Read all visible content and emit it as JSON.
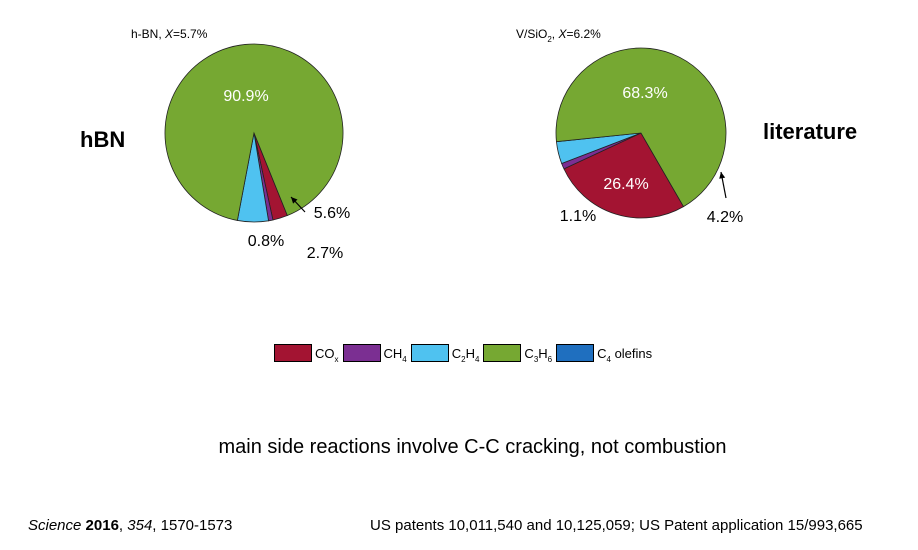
{
  "charts_header": {
    "left_label": "hBN",
    "right_label": "literature",
    "left_subtitle_prefix": "h-BN, ",
    "left_subtitle_x": "X",
    "left_subtitle_value": "=5.7%",
    "right_subtitle_prefix": "V/SiO",
    "right_subtitle_sub": "2",
    "right_subtitle_sep": ", ",
    "right_subtitle_x": "X",
    "right_subtitle_value": "=6.2%"
  },
  "colors": {
    "COx": "#a31432",
    "CH4": "#7b2f92",
    "C2H4": "#4fc2f0",
    "C3H6": "#76a832",
    "C4": "#1f6fbf"
  },
  "legend": {
    "items": [
      {
        "key": "COx",
        "base": "CO",
        "sub": "x",
        "tail": ""
      },
      {
        "key": "CH4",
        "base": "CH",
        "sub": "4",
        "tail": ""
      },
      {
        "key": "C2H4",
        "base": "C",
        "sub": "2",
        "tail": "H",
        "sub2": "4"
      },
      {
        "key": "C3H6",
        "base": "C",
        "sub": "3",
        "tail": "H",
        "sub2": "6"
      },
      {
        "key": "C4",
        "base": "C",
        "sub": "4",
        "tail": " olefins"
      }
    ]
  },
  "chart_data": [
    {
      "type": "pie",
      "title": "h-BN, X=5.7%",
      "categories": [
        "COx",
        "CH4",
        "C2H4",
        "C3H6",
        "C4 olefins"
      ],
      "values": [
        2.7,
        0.8,
        5.6,
        90.9,
        0.0
      ],
      "labels": [
        "2.7%",
        "0.8%",
        "5.6%",
        "90.9%",
        ""
      ]
    },
    {
      "type": "pie",
      "title": "V/SiO2, X=6.2%",
      "categories": [
        "COx",
        "CH4",
        "C2H4",
        "C3H6",
        "C4 olefins"
      ],
      "values": [
        26.4,
        1.1,
        4.2,
        68.3,
        0.0
      ],
      "labels": [
        "26.4%",
        "1.1%",
        "4.2%",
        "68.3%",
        ""
      ]
    }
  ],
  "caption": "main side reactions involve C-C cracking, not combustion",
  "footer": {
    "left_journal": "Science",
    "left_year": "2016",
    "left_volume": "354",
    "left_pages": ", 1570-1573",
    "right_text": "US patents  10,011,540 and 10,125,059; US Patent application 15/993,665"
  }
}
